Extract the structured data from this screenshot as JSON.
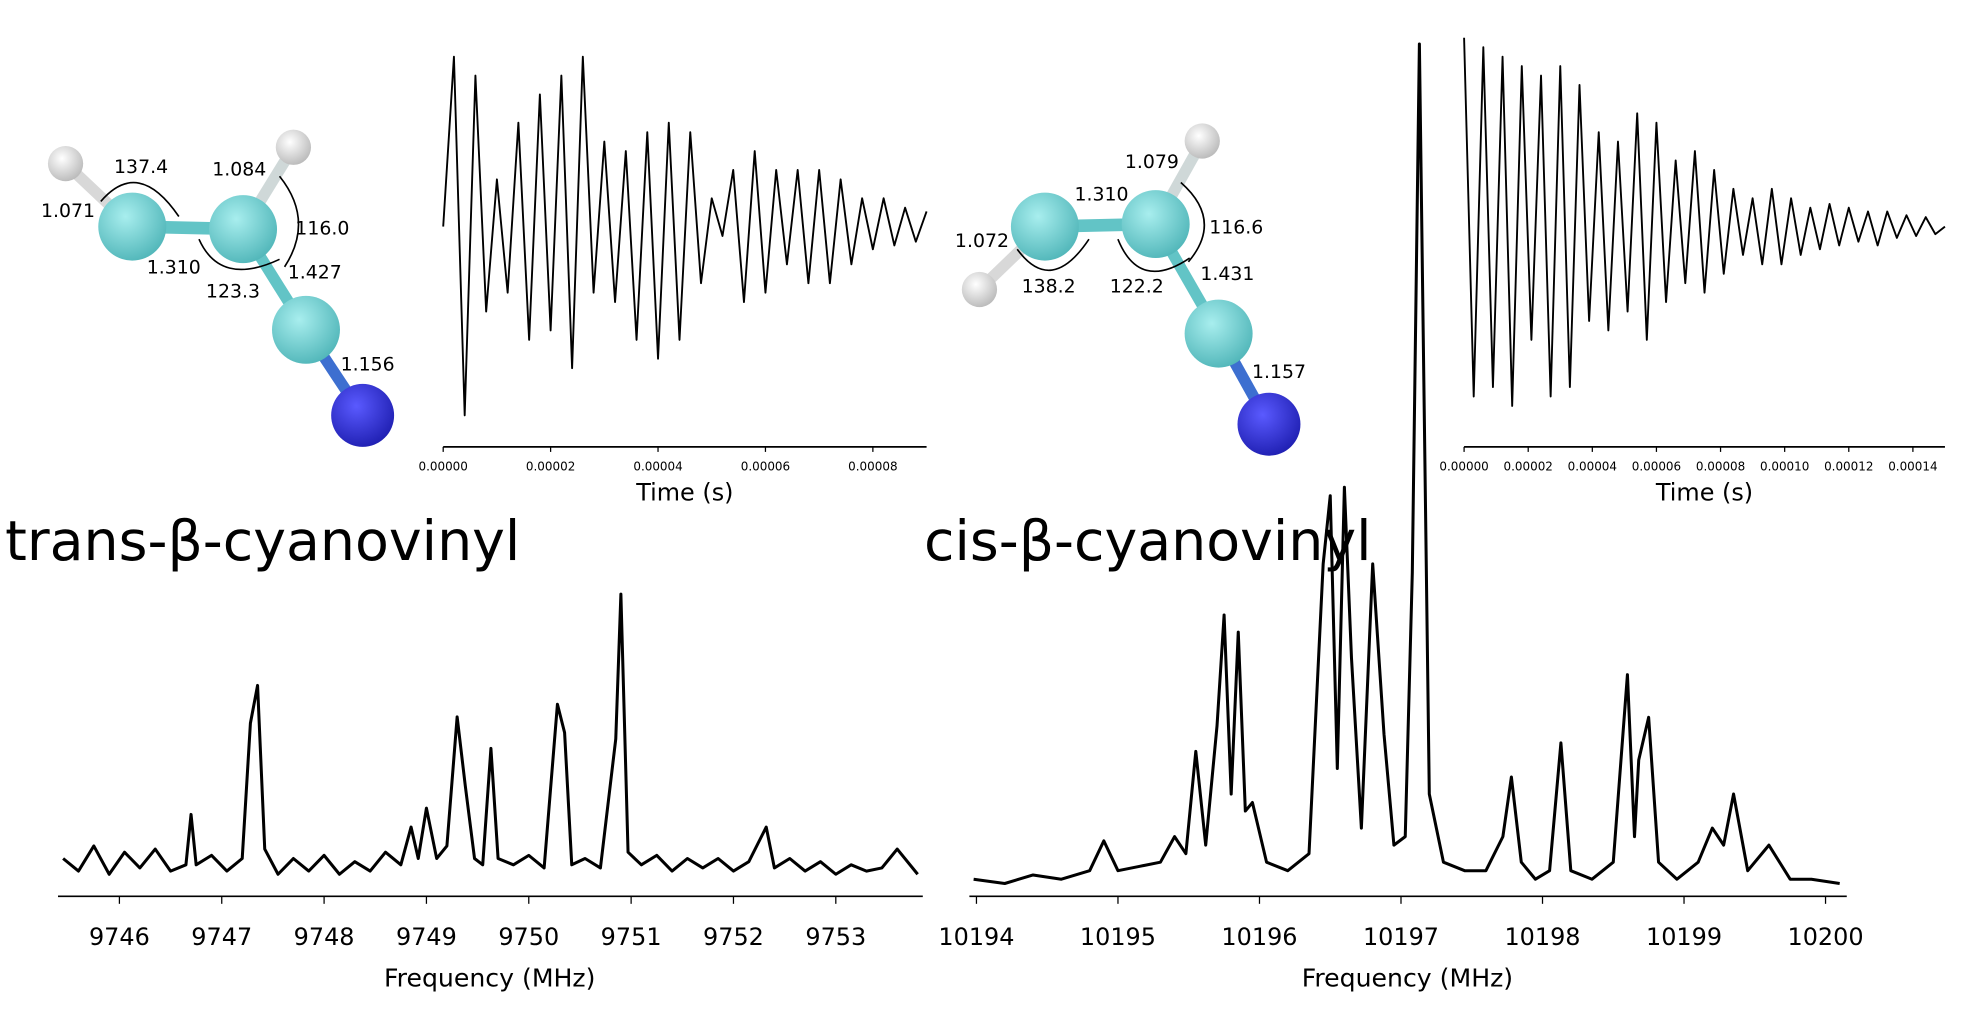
{
  "chart_data": [
    {
      "type": "line",
      "xlabel": "Time (s)",
      "color": "#000000",
      "x": [
        0,
        2e-06,
        4e-06,
        6e-06,
        8e-06,
        1e-05,
        1.2e-05,
        1.4e-05,
        1.6e-05,
        1.8e-05,
        2e-05,
        2.2e-05,
        2.4e-05,
        2.6e-05,
        2.8e-05,
        3e-05,
        3.2e-05,
        3.4e-05,
        3.6e-05,
        3.8e-05,
        4e-05,
        4.2e-05,
        4.4e-05,
        4.6e-05,
        4.8e-05,
        5e-05,
        5.2e-05,
        5.4e-05,
        5.6e-05,
        5.8e-05,
        6e-05,
        6.2e-05,
        6.4e-05,
        6.6e-05,
        6.8e-05,
        7e-05,
        7.2e-05,
        7.4e-05,
        7.6e-05,
        7.8e-05,
        8e-05,
        8.2e-05,
        8.4e-05,
        8.6e-05,
        8.8e-05,
        9e-05
      ],
      "values": [
        0,
        0.9,
        -1.0,
        0.8,
        -0.45,
        0.25,
        -0.35,
        0.55,
        -0.6,
        0.7,
        -0.55,
        0.8,
        -0.75,
        0.9,
        -0.35,
        0.45,
        -0.4,
        0.4,
        -0.6,
        0.5,
        -0.7,
        0.55,
        -0.6,
        0.5,
        -0.3,
        0.15,
        -0.05,
        0.3,
        -0.4,
        0.4,
        -0.35,
        0.3,
        -0.2,
        0.3,
        -0.3,
        0.3,
        -0.3,
        0.25,
        -0.2,
        0.15,
        -0.12,
        0.15,
        -0.1,
        0.1,
        -0.08,
        0.08
      ],
      "xlim": [
        0,
        9e-05
      ],
      "ylim": [
        -1,
        1
      ],
      "xticks": [
        {
          "value": 0,
          "label": "0.00000"
        },
        {
          "value": 2e-05,
          "label": "0.00002"
        },
        {
          "value": 4e-05,
          "label": "0.00004"
        },
        {
          "value": 6e-05,
          "label": "0.00006"
        },
        {
          "value": 8e-05,
          "label": "0.00008"
        }
      ]
    },
    {
      "type": "line",
      "xlabel": "Time (s)",
      "color": "#000000",
      "x": [
        0,
        3e-06,
        6e-06,
        9e-06,
        1.2e-05,
        1.5e-05,
        1.8e-05,
        2.1e-05,
        2.4e-05,
        2.7e-05,
        3e-05,
        3.3e-05,
        3.6e-05,
        3.9e-05,
        4.2e-05,
        4.5e-05,
        4.8e-05,
        5.1e-05,
        5.4e-05,
        5.7e-05,
        6e-05,
        6.3e-05,
        6.6e-05,
        6.9e-05,
        7.2e-05,
        7.5e-05,
        7.8e-05,
        8.1e-05,
        8.4e-05,
        8.7e-05,
        9e-05,
        9.3e-05,
        9.6e-05,
        9.9e-05,
        0.000102,
        0.000105,
        0.000108,
        0.000111,
        0.000114,
        0.000117,
        0.00012,
        0.000123,
        0.000126,
        0.000129,
        0.000132,
        0.000135,
        0.000138,
        0.000141,
        0.000144,
        0.000147,
        0.00015
      ],
      "values": [
        1.0,
        -0.9,
        0.95,
        -0.85,
        0.9,
        -0.95,
        0.85,
        -0.6,
        0.8,
        -0.9,
        0.85,
        -0.85,
        0.75,
        -0.5,
        0.5,
        -0.55,
        0.45,
        -0.45,
        0.6,
        -0.6,
        0.55,
        -0.4,
        0.35,
        -0.3,
        0.4,
        -0.35,
        0.3,
        -0.25,
        0.2,
        -0.15,
        0.15,
        -0.2,
        0.2,
        -0.2,
        0.15,
        -0.15,
        0.1,
        -0.12,
        0.12,
        -0.1,
        0.1,
        -0.08,
        0.08,
        -0.1,
        0.08,
        -0.06,
        0.06,
        -0.05,
        0.05,
        -0.04,
        0.0
      ],
      "xlim": [
        0,
        0.00015
      ],
      "ylim": [
        -1,
        1
      ],
      "xticks": [
        {
          "value": 0,
          "label": "0.00000"
        },
        {
          "value": 2e-05,
          "label": "0.00002"
        },
        {
          "value": 4e-05,
          "label": "0.00004"
        },
        {
          "value": 6e-05,
          "label": "0.00006"
        },
        {
          "value": 8e-05,
          "label": "0.00008"
        },
        {
          "value": 0.0001,
          "label": "0.00010"
        },
        {
          "value": 0.00012,
          "label": "0.00012"
        },
        {
          "value": 0.00014,
          "label": "0.00014"
        }
      ]
    },
    {
      "type": "line",
      "xlabel": "Frequency (MHz)",
      "color": "#000000",
      "x": [
        9745.45,
        9745.6,
        9745.75,
        9745.9,
        9746.05,
        9746.2,
        9746.35,
        9746.5,
        9746.65,
        9746.7,
        9746.75,
        9746.9,
        9747.05,
        9747.2,
        9747.28,
        9747.35,
        9747.42,
        9747.55,
        9747.7,
        9747.85,
        9748.0,
        9748.15,
        9748.3,
        9748.45,
        9748.6,
        9748.75,
        9748.85,
        9748.92,
        9749.0,
        9749.1,
        9749.2,
        9749.3,
        9749.38,
        9749.47,
        9749.55,
        9749.63,
        9749.7,
        9749.85,
        9750.0,
        9750.15,
        9750.28,
        9750.35,
        9750.42,
        9750.55,
        9750.7,
        9750.85,
        9750.9,
        9750.97,
        9751.1,
        9751.25,
        9751.4,
        9751.55,
        9751.7,
        9751.85,
        9752.0,
        9752.15,
        9752.32,
        9752.4,
        9752.55,
        9752.7,
        9752.85,
        9753.0,
        9753.15,
        9753.3,
        9753.45,
        9753.6,
        9753.8
      ],
      "values": [
        0.12,
        0.08,
        0.16,
        0.07,
        0.14,
        0.09,
        0.15,
        0.08,
        0.1,
        0.26,
        0.1,
        0.13,
        0.08,
        0.12,
        0.55,
        0.67,
        0.15,
        0.07,
        0.12,
        0.08,
        0.13,
        0.07,
        0.11,
        0.08,
        0.14,
        0.1,
        0.22,
        0.12,
        0.28,
        0.12,
        0.16,
        0.57,
        0.35,
        0.12,
        0.1,
        0.47,
        0.12,
        0.1,
        0.13,
        0.09,
        0.61,
        0.52,
        0.1,
        0.12,
        0.09,
        0.5,
        0.96,
        0.14,
        0.1,
        0.13,
        0.08,
        0.12,
        0.09,
        0.12,
        0.08,
        0.11,
        0.22,
        0.09,
        0.12,
        0.08,
        0.11,
        0.07,
        0.1,
        0.08,
        0.09,
        0.15,
        0.07
      ],
      "xlim": [
        9745.4,
        9753.85
      ],
      "ylim": [
        0,
        1
      ],
      "xticks": [
        9746,
        9747,
        9748,
        9749,
        9750,
        9751,
        9752,
        9753
      ]
    },
    {
      "type": "line",
      "xlabel": "Frequency (MHz)",
      "color": "#000000",
      "x": [
        10193.98,
        10194.2,
        10194.4,
        10194.6,
        10194.8,
        10194.9,
        10195.0,
        10195.15,
        10195.3,
        10195.4,
        10195.48,
        10195.55,
        10195.62,
        10195.7,
        10195.75,
        10195.8,
        10195.85,
        10195.9,
        10195.95,
        10196.05,
        10196.2,
        10196.35,
        10196.45,
        10196.5,
        10196.55,
        10196.6,
        10196.65,
        10196.72,
        10196.8,
        10196.88,
        10196.95,
        10197.03,
        10197.08,
        10197.13,
        10197.2,
        10197.3,
        10197.45,
        10197.6,
        10197.72,
        10197.78,
        10197.85,
        10197.95,
        10198.05,
        10198.13,
        10198.2,
        10198.35,
        10198.5,
        10198.6,
        10198.65,
        10198.68,
        10198.75,
        10198.82,
        10198.95,
        10199.1,
        10199.2,
        10199.28,
        10199.35,
        10199.45,
        10199.6,
        10199.75,
        10199.9,
        10200.1
      ],
      "values": [
        0.02,
        0.015,
        0.025,
        0.02,
        0.03,
        0.065,
        0.03,
        0.035,
        0.04,
        0.07,
        0.05,
        0.17,
        0.06,
        0.2,
        0.33,
        0.12,
        0.31,
        0.1,
        0.11,
        0.04,
        0.03,
        0.05,
        0.39,
        0.47,
        0.15,
        0.48,
        0.28,
        0.08,
        0.39,
        0.19,
        0.06,
        0.07,
        0.38,
        1.0,
        0.12,
        0.04,
        0.03,
        0.03,
        0.07,
        0.14,
        0.04,
        0.02,
        0.03,
        0.18,
        0.03,
        0.02,
        0.04,
        0.26,
        0.07,
        0.16,
        0.21,
        0.04,
        0.02,
        0.04,
        0.08,
        0.06,
        0.12,
        0.03,
        0.06,
        0.02,
        0.02,
        0.015
      ],
      "xlim": [
        10193.95,
        10200.15
      ],
      "ylim": [
        0,
        1
      ],
      "xticks": [
        10194,
        10195,
        10196,
        10197,
        10198,
        10199,
        10200
      ]
    }
  ],
  "molecules": [
    {
      "name": "trans-β-cyanovinyl",
      "labels": [
        "137.4",
        "1.071",
        "1.084",
        "116.0",
        "1.310",
        "1.427",
        "123.3",
        "1.156"
      ]
    },
    {
      "name": "cis-β-cyanovinyl",
      "labels": [
        "1.079",
        "1.310",
        "116.6",
        "1.072",
        "138.2",
        "122.2",
        "1.431",
        "1.157"
      ]
    }
  ]
}
